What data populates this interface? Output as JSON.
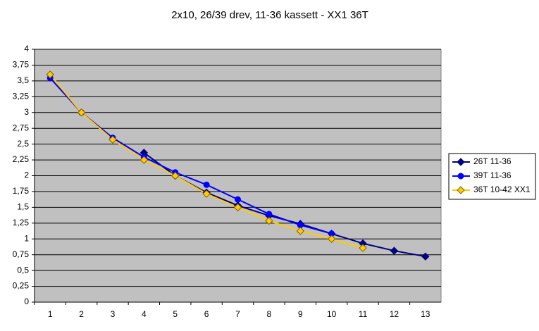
{
  "chart_data": {
    "type": "line",
    "title": "2x10, 26/39 drev, 11-36 kassett - XX1 36T",
    "categories": [
      "1",
      "2",
      "3",
      "4",
      "5",
      "6",
      "7",
      "8",
      "9",
      "10",
      "11",
      "12",
      "13"
    ],
    "series": [
      {
        "name": "26T 11-36",
        "color": "#000080",
        "values": [
          null,
          null,
          null,
          2.364,
          2.0,
          1.733,
          1.529,
          1.368,
          1.238,
          1.083,
          0.929,
          0.8125,
          0.722
        ]
      },
      {
        "name": "39T 11-36",
        "color": "#0000ff",
        "values": [
          3.545,
          3.0,
          2.6,
          2.294,
          2.053,
          1.857,
          1.625,
          1.393,
          1.219,
          1.083,
          null,
          null,
          null
        ]
      },
      {
        "name": "36T 10-42 XX1",
        "color": "#ffcc00",
        "values": [
          3.6,
          3.0,
          2.571,
          2.25,
          2.0,
          1.714,
          1.5,
          1.286,
          1.125,
          1.0,
          0.857,
          null,
          null
        ]
      }
    ],
    "ylim": [
      0,
      4
    ],
    "yticks": [
      0,
      {
        "value": 0.25,
        "label": "0,25"
      },
      {
        "value": 0.5,
        "label": "0,5"
      },
      {
        "value": 0.75,
        "label": "0,75"
      },
      1,
      {
        "value": 1.25,
        "label": "1,25"
      },
      {
        "value": 1.5,
        "label": "1,5"
      },
      {
        "value": 1.75,
        "label": "1,75"
      },
      2,
      {
        "value": 2.25,
        "label": "2,25"
      },
      {
        "value": 2.5,
        "label": "2,5"
      },
      {
        "value": 2.75,
        "label": "2,75"
      },
      3,
      {
        "value": 3.25,
        "label": "3,25"
      },
      {
        "value": 3.5,
        "label": "3,5"
      },
      {
        "value": 3.75,
        "label": "3,75"
      },
      4
    ],
    "grid": true,
    "legend": "right"
  }
}
